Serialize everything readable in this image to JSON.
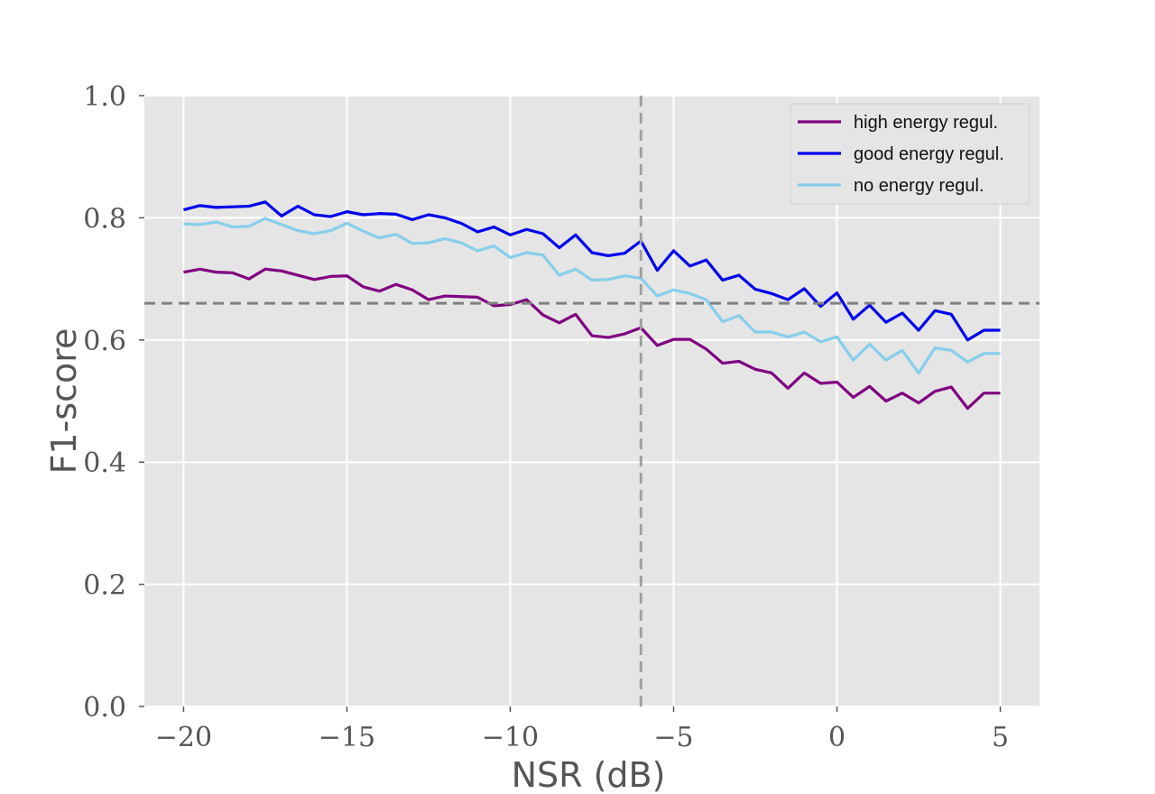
{
  "chart_data": {
    "type": "line",
    "xlabel": "NSR (dB)",
    "ylabel": "F1-score",
    "xlim": [
      -21.2,
      6.2
    ],
    "ylim": [
      0.0,
      1.0
    ],
    "xticks": [
      -20,
      -15,
      -10,
      -5,
      0,
      5
    ],
    "xtick_labels": [
      "−20",
      "−15",
      "−10",
      "−5",
      "0",
      "5"
    ],
    "yticks": [
      0.0,
      0.2,
      0.4,
      0.6,
      0.8,
      1.0
    ],
    "ytick_labels": [
      "0.0",
      "0.2",
      "0.4",
      "0.6",
      "0.8",
      "1.0"
    ],
    "grid": true,
    "background": "#e5e5e5",
    "grid_color": "#ffffff",
    "legend_position": "top-right",
    "reference_lines": {
      "horizontal_y": 0.66,
      "vertical_x": -6,
      "color": "#a0a0a0"
    },
    "x": [
      -20,
      -19.5,
      -19,
      -18.5,
      -18,
      -17.5,
      -17,
      -16.5,
      -16,
      -15.5,
      -15,
      -14.5,
      -14,
      -13.5,
      -13,
      -12.5,
      -12,
      -11.5,
      -11,
      -10.5,
      -10,
      -9.5,
      -9,
      -8.5,
      -8,
      -7.5,
      -7,
      -6.5,
      -6,
      -5.5,
      -5,
      -4.5,
      -4,
      -3.5,
      -3,
      -2.5,
      -2,
      -1.5,
      -1,
      -0.5,
      0,
      0.5,
      1,
      1.5,
      2,
      2.5,
      3,
      3.5,
      4,
      4.5,
      5
    ],
    "series": [
      {
        "name": "high energy regul.",
        "color": "#800080",
        "values": [
          0.711,
          0.716,
          0.711,
          0.71,
          0.7,
          0.716,
          0.713,
          0.706,
          0.699,
          0.704,
          0.705,
          0.687,
          0.68,
          0.691,
          0.682,
          0.666,
          0.672,
          0.671,
          0.67,
          0.656,
          0.658,
          0.666,
          0.641,
          0.628,
          0.642,
          0.607,
          0.604,
          0.61,
          0.62,
          0.591,
          0.601,
          0.601,
          0.585,
          0.562,
          0.565,
          0.552,
          0.546,
          0.521,
          0.546,
          0.529,
          0.531,
          0.506,
          0.524,
          0.5,
          0.513,
          0.497,
          0.516,
          0.523,
          0.488,
          0.513,
          0.513
        ]
      },
      {
        "name": "good energy regul.",
        "color": "#0000ee",
        "values": [
          0.813,
          0.82,
          0.817,
          0.818,
          0.819,
          0.826,
          0.803,
          0.819,
          0.805,
          0.802,
          0.81,
          0.805,
          0.807,
          0.806,
          0.797,
          0.805,
          0.8,
          0.791,
          0.777,
          0.785,
          0.772,
          0.781,
          0.774,
          0.751,
          0.772,
          0.743,
          0.738,
          0.742,
          0.762,
          0.714,
          0.746,
          0.721,
          0.731,
          0.698,
          0.706,
          0.683,
          0.676,
          0.666,
          0.684,
          0.655,
          0.677,
          0.634,
          0.657,
          0.629,
          0.644,
          0.616,
          0.648,
          0.642,
          0.6,
          0.616,
          0.616
        ]
      },
      {
        "name": "no energy regul.",
        "color": "#87ceeb",
        "values": [
          0.79,
          0.789,
          0.793,
          0.785,
          0.786,
          0.799,
          0.789,
          0.779,
          0.774,
          0.779,
          0.791,
          0.778,
          0.767,
          0.773,
          0.758,
          0.759,
          0.766,
          0.759,
          0.746,
          0.754,
          0.735,
          0.743,
          0.739,
          0.706,
          0.716,
          0.698,
          0.699,
          0.705,
          0.701,
          0.672,
          0.682,
          0.676,
          0.666,
          0.63,
          0.64,
          0.613,
          0.613,
          0.605,
          0.613,
          0.597,
          0.605,
          0.567,
          0.593,
          0.567,
          0.583,
          0.546,
          0.587,
          0.583,
          0.564,
          0.578,
          0.578
        ]
      }
    ]
  }
}
